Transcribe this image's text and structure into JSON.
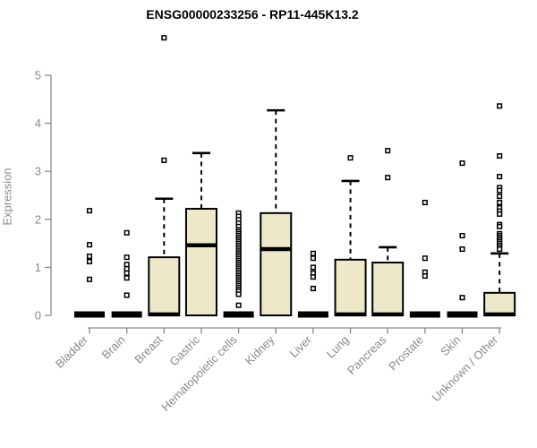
{
  "title": "ENSG00000233256 - RP11-445K13.2",
  "chart_data": {
    "type": "boxplot",
    "title": "ENSG00000233256 - RP11-445K13.2",
    "xlabel": "",
    "ylabel": "Expression",
    "ylim": [
      0,
      5
    ],
    "yticks": [
      "0",
      "1",
      "2",
      "3",
      "4",
      "5"
    ],
    "grid": "off",
    "legend": "none",
    "colors": {
      "box_fill": "#EDE8C8",
      "box_edge": "#000000",
      "median": "#000000",
      "whisker": "#000000",
      "outlier_fill": "#ffffff",
      "outlier_edge": "#000000",
      "axis": "#8a8a8a",
      "tick_label": "#8a8a8a",
      "title_color": "#000000"
    },
    "categories": [
      "Bladder",
      "Brain",
      "Breast",
      "Gastric",
      "Hematopoietic cells",
      "Kidney",
      "Liver",
      "Lung",
      "Pancreas",
      "Prostate",
      "Skin",
      "Unknown / Other"
    ],
    "groups": [
      {
        "category": "Bladder",
        "flat": true,
        "q1": 0,
        "median": 0,
        "q3": 0,
        "whisker_low": 0,
        "whisker_high": 0,
        "outliers": [
          2.18,
          1.47,
          1.23,
          1.12,
          0.75
        ]
      },
      {
        "category": "Brain",
        "flat": true,
        "q1": 0,
        "median": 0,
        "q3": 0,
        "whisker_low": 0,
        "whisker_high": 0,
        "outliers": [
          1.72,
          1.21,
          1.06,
          0.97,
          0.88,
          0.78,
          0.42
        ]
      },
      {
        "category": "Breast",
        "flat": false,
        "q1": 0,
        "median": 0.02,
        "q3": 1.21,
        "whisker_low": 0,
        "whisker_high": 2.43,
        "outliers": [
          5.78,
          3.23
        ]
      },
      {
        "category": "Gastric",
        "flat": false,
        "q1": 0,
        "median": 1.46,
        "q3": 2.22,
        "whisker_low": 0,
        "whisker_high": 3.38,
        "outliers": []
      },
      {
        "category": "Hematopoietic cells",
        "flat": true,
        "q1": 0,
        "median": 0,
        "q3": 0,
        "whisker_low": 0,
        "whisker_high": 0,
        "outliers": [
          2.13,
          2.06,
          1.99,
          1.92,
          1.85,
          1.78,
          1.74,
          1.7,
          1.66,
          1.62,
          1.58,
          1.54,
          1.5,
          1.46,
          1.42,
          1.38,
          1.34,
          1.3,
          1.26,
          1.22,
          1.18,
          1.14,
          1.1,
          1.06,
          1.02,
          0.98,
          0.94,
          0.9,
          0.86,
          0.82,
          0.78,
          0.74,
          0.7,
          0.66,
          0.62,
          0.58,
          0.54,
          0.5,
          0.44,
          0.21
        ]
      },
      {
        "category": "Kidney",
        "flat": false,
        "q1": 0,
        "median": 1.38,
        "q3": 2.13,
        "whisker_low": 0,
        "whisker_high": 4.27,
        "outliers": []
      },
      {
        "category": "Liver",
        "flat": true,
        "q1": 0,
        "median": 0,
        "q3": 0,
        "whisker_low": 0,
        "whisker_high": 0,
        "outliers": [
          1.29,
          1.19,
          1.0,
          0.88,
          0.8,
          0.56
        ]
      },
      {
        "category": "Lung",
        "flat": false,
        "q1": 0,
        "median": 0.02,
        "q3": 1.16,
        "whisker_low": 0,
        "whisker_high": 2.8,
        "outliers": [
          3.28
        ]
      },
      {
        "category": "Pancreas",
        "flat": false,
        "q1": 0,
        "median": 0.02,
        "q3": 1.1,
        "whisker_low": 0,
        "whisker_high": 1.42,
        "outliers": [
          3.43,
          2.87
        ]
      },
      {
        "category": "Prostate",
        "flat": true,
        "q1": 0,
        "median": 0,
        "q3": 0,
        "whisker_low": 0,
        "whisker_high": 0,
        "outliers": [
          2.35,
          1.19,
          0.9,
          0.82
        ]
      },
      {
        "category": "Skin",
        "flat": true,
        "q1": 0,
        "median": 0,
        "q3": 0,
        "whisker_low": 0,
        "whisker_high": 0,
        "outliers": [
          3.17,
          1.66,
          1.38,
          0.37
        ]
      },
      {
        "category": "Unknown / Other",
        "flat": false,
        "q1": 0,
        "median": 0.02,
        "q3": 0.47,
        "whisker_low": 0,
        "whisker_high": 1.29,
        "outliers": [
          4.36,
          3.32,
          2.89,
          2.66,
          2.6,
          2.48,
          2.35,
          2.24,
          2.17,
          2.11,
          1.89,
          1.85,
          1.7,
          1.66,
          1.62,
          1.58,
          1.54,
          1.5,
          1.46,
          1.42,
          1.38
        ]
      }
    ]
  }
}
